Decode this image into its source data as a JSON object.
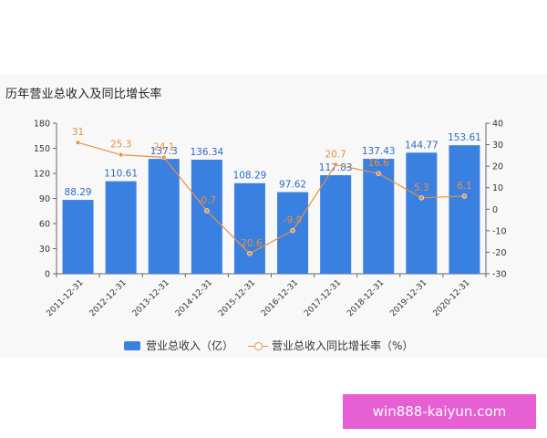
{
  "title": "历年营业总收入及同比增长率",
  "legend": {
    "bar_label": "营业总收入（亿）",
    "line_label": "营业总收入同比增长率（%）"
  },
  "watermark": "win888-kaiyun.com",
  "colors": {
    "bar": "#3a80e0",
    "line": "#e8913e",
    "bar_label": "#2f6bc1"
  },
  "chart_data": {
    "type": "bar",
    "categories": [
      "2011-12-31",
      "2012-12-31",
      "2013-12-31",
      "2014-12-31",
      "2015-12-31",
      "2016-12-31",
      "2017-12-31",
      "2018-12-31",
      "2019-12-31",
      "2020-12-31"
    ],
    "series": [
      {
        "name": "营业总收入（亿）",
        "type": "bar",
        "axis": "left",
        "values": [
          88.29,
          110.61,
          137.3,
          136.34,
          108.29,
          97.62,
          117.83,
          137.43,
          144.77,
          153.61
        ],
        "labels": [
          "88.29",
          "110.61",
          "137.3",
          "136.34",
          "108.29",
          "97.62",
          "117.83",
          "137.43",
          "144.77",
          "153.61"
        ]
      },
      {
        "name": "营业总收入同比增长率（%）",
        "type": "line",
        "axis": "right",
        "values": [
          31,
          25.3,
          24.1,
          -0.7,
          -20.6,
          -9.9,
          20.7,
          16.6,
          5.3,
          6.1
        ],
        "labels": [
          "31",
          "25.3",
          "24.1",
          "-0.7",
          "-20.6",
          "-9.9",
          "20.7",
          "16.6",
          "5.3",
          "6.1"
        ]
      }
    ],
    "y_left": {
      "ticks": [
        0,
        30,
        60,
        90,
        120,
        150,
        180
      ],
      "range": [
        0,
        180
      ]
    },
    "y_right": {
      "ticks": [
        -30,
        -20,
        -10,
        0,
        10,
        20,
        30,
        40
      ],
      "range": [
        -30,
        40
      ]
    },
    "legend_position": "bottom",
    "grid": false
  }
}
